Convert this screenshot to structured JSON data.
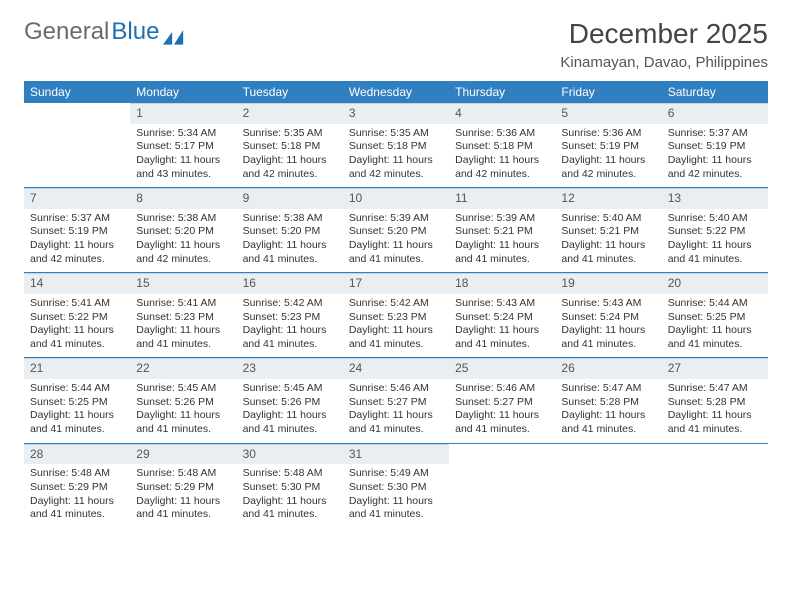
{
  "logo": {
    "part1": "General",
    "part2": "Blue"
  },
  "title": "December 2025",
  "location": "Kinamayan, Davao, Philippines",
  "colors": {
    "header_bg": "#2f7fc1",
    "header_fg": "#ffffff",
    "daynum_bg": "#e9eef2",
    "rule": "#2f7fc1",
    "logo_blue": "#1f6fb2",
    "text": "#333333"
  },
  "weekdays": [
    "Sunday",
    "Monday",
    "Tuesday",
    "Wednesday",
    "Thursday",
    "Friday",
    "Saturday"
  ],
  "first_weekday_index": 1,
  "days": [
    {
      "n": 1,
      "sunrise": "5:34 AM",
      "sunset": "5:17 PM",
      "daylight": "11 hours and 43 minutes."
    },
    {
      "n": 2,
      "sunrise": "5:35 AM",
      "sunset": "5:18 PM",
      "daylight": "11 hours and 42 minutes."
    },
    {
      "n": 3,
      "sunrise": "5:35 AM",
      "sunset": "5:18 PM",
      "daylight": "11 hours and 42 minutes."
    },
    {
      "n": 4,
      "sunrise": "5:36 AM",
      "sunset": "5:18 PM",
      "daylight": "11 hours and 42 minutes."
    },
    {
      "n": 5,
      "sunrise": "5:36 AM",
      "sunset": "5:19 PM",
      "daylight": "11 hours and 42 minutes."
    },
    {
      "n": 6,
      "sunrise": "5:37 AM",
      "sunset": "5:19 PM",
      "daylight": "11 hours and 42 minutes."
    },
    {
      "n": 7,
      "sunrise": "5:37 AM",
      "sunset": "5:19 PM",
      "daylight": "11 hours and 42 minutes."
    },
    {
      "n": 8,
      "sunrise": "5:38 AM",
      "sunset": "5:20 PM",
      "daylight": "11 hours and 42 minutes."
    },
    {
      "n": 9,
      "sunrise": "5:38 AM",
      "sunset": "5:20 PM",
      "daylight": "11 hours and 41 minutes."
    },
    {
      "n": 10,
      "sunrise": "5:39 AM",
      "sunset": "5:20 PM",
      "daylight": "11 hours and 41 minutes."
    },
    {
      "n": 11,
      "sunrise": "5:39 AM",
      "sunset": "5:21 PM",
      "daylight": "11 hours and 41 minutes."
    },
    {
      "n": 12,
      "sunrise": "5:40 AM",
      "sunset": "5:21 PM",
      "daylight": "11 hours and 41 minutes."
    },
    {
      "n": 13,
      "sunrise": "5:40 AM",
      "sunset": "5:22 PM",
      "daylight": "11 hours and 41 minutes."
    },
    {
      "n": 14,
      "sunrise": "5:41 AM",
      "sunset": "5:22 PM",
      "daylight": "11 hours and 41 minutes."
    },
    {
      "n": 15,
      "sunrise": "5:41 AM",
      "sunset": "5:23 PM",
      "daylight": "11 hours and 41 minutes."
    },
    {
      "n": 16,
      "sunrise": "5:42 AM",
      "sunset": "5:23 PM",
      "daylight": "11 hours and 41 minutes."
    },
    {
      "n": 17,
      "sunrise": "5:42 AM",
      "sunset": "5:23 PM",
      "daylight": "11 hours and 41 minutes."
    },
    {
      "n": 18,
      "sunrise": "5:43 AM",
      "sunset": "5:24 PM",
      "daylight": "11 hours and 41 minutes."
    },
    {
      "n": 19,
      "sunrise": "5:43 AM",
      "sunset": "5:24 PM",
      "daylight": "11 hours and 41 minutes."
    },
    {
      "n": 20,
      "sunrise": "5:44 AM",
      "sunset": "5:25 PM",
      "daylight": "11 hours and 41 minutes."
    },
    {
      "n": 21,
      "sunrise": "5:44 AM",
      "sunset": "5:25 PM",
      "daylight": "11 hours and 41 minutes."
    },
    {
      "n": 22,
      "sunrise": "5:45 AM",
      "sunset": "5:26 PM",
      "daylight": "11 hours and 41 minutes."
    },
    {
      "n": 23,
      "sunrise": "5:45 AM",
      "sunset": "5:26 PM",
      "daylight": "11 hours and 41 minutes."
    },
    {
      "n": 24,
      "sunrise": "5:46 AM",
      "sunset": "5:27 PM",
      "daylight": "11 hours and 41 minutes."
    },
    {
      "n": 25,
      "sunrise": "5:46 AM",
      "sunset": "5:27 PM",
      "daylight": "11 hours and 41 minutes."
    },
    {
      "n": 26,
      "sunrise": "5:47 AM",
      "sunset": "5:28 PM",
      "daylight": "11 hours and 41 minutes."
    },
    {
      "n": 27,
      "sunrise": "5:47 AM",
      "sunset": "5:28 PM",
      "daylight": "11 hours and 41 minutes."
    },
    {
      "n": 28,
      "sunrise": "5:48 AM",
      "sunset": "5:29 PM",
      "daylight": "11 hours and 41 minutes."
    },
    {
      "n": 29,
      "sunrise": "5:48 AM",
      "sunset": "5:29 PM",
      "daylight": "11 hours and 41 minutes."
    },
    {
      "n": 30,
      "sunrise": "5:48 AM",
      "sunset": "5:30 PM",
      "daylight": "11 hours and 41 minutes."
    },
    {
      "n": 31,
      "sunrise": "5:49 AM",
      "sunset": "5:30 PM",
      "daylight": "11 hours and 41 minutes."
    }
  ],
  "labels": {
    "sunrise": "Sunrise:",
    "sunset": "Sunset:",
    "daylight": "Daylight:"
  }
}
